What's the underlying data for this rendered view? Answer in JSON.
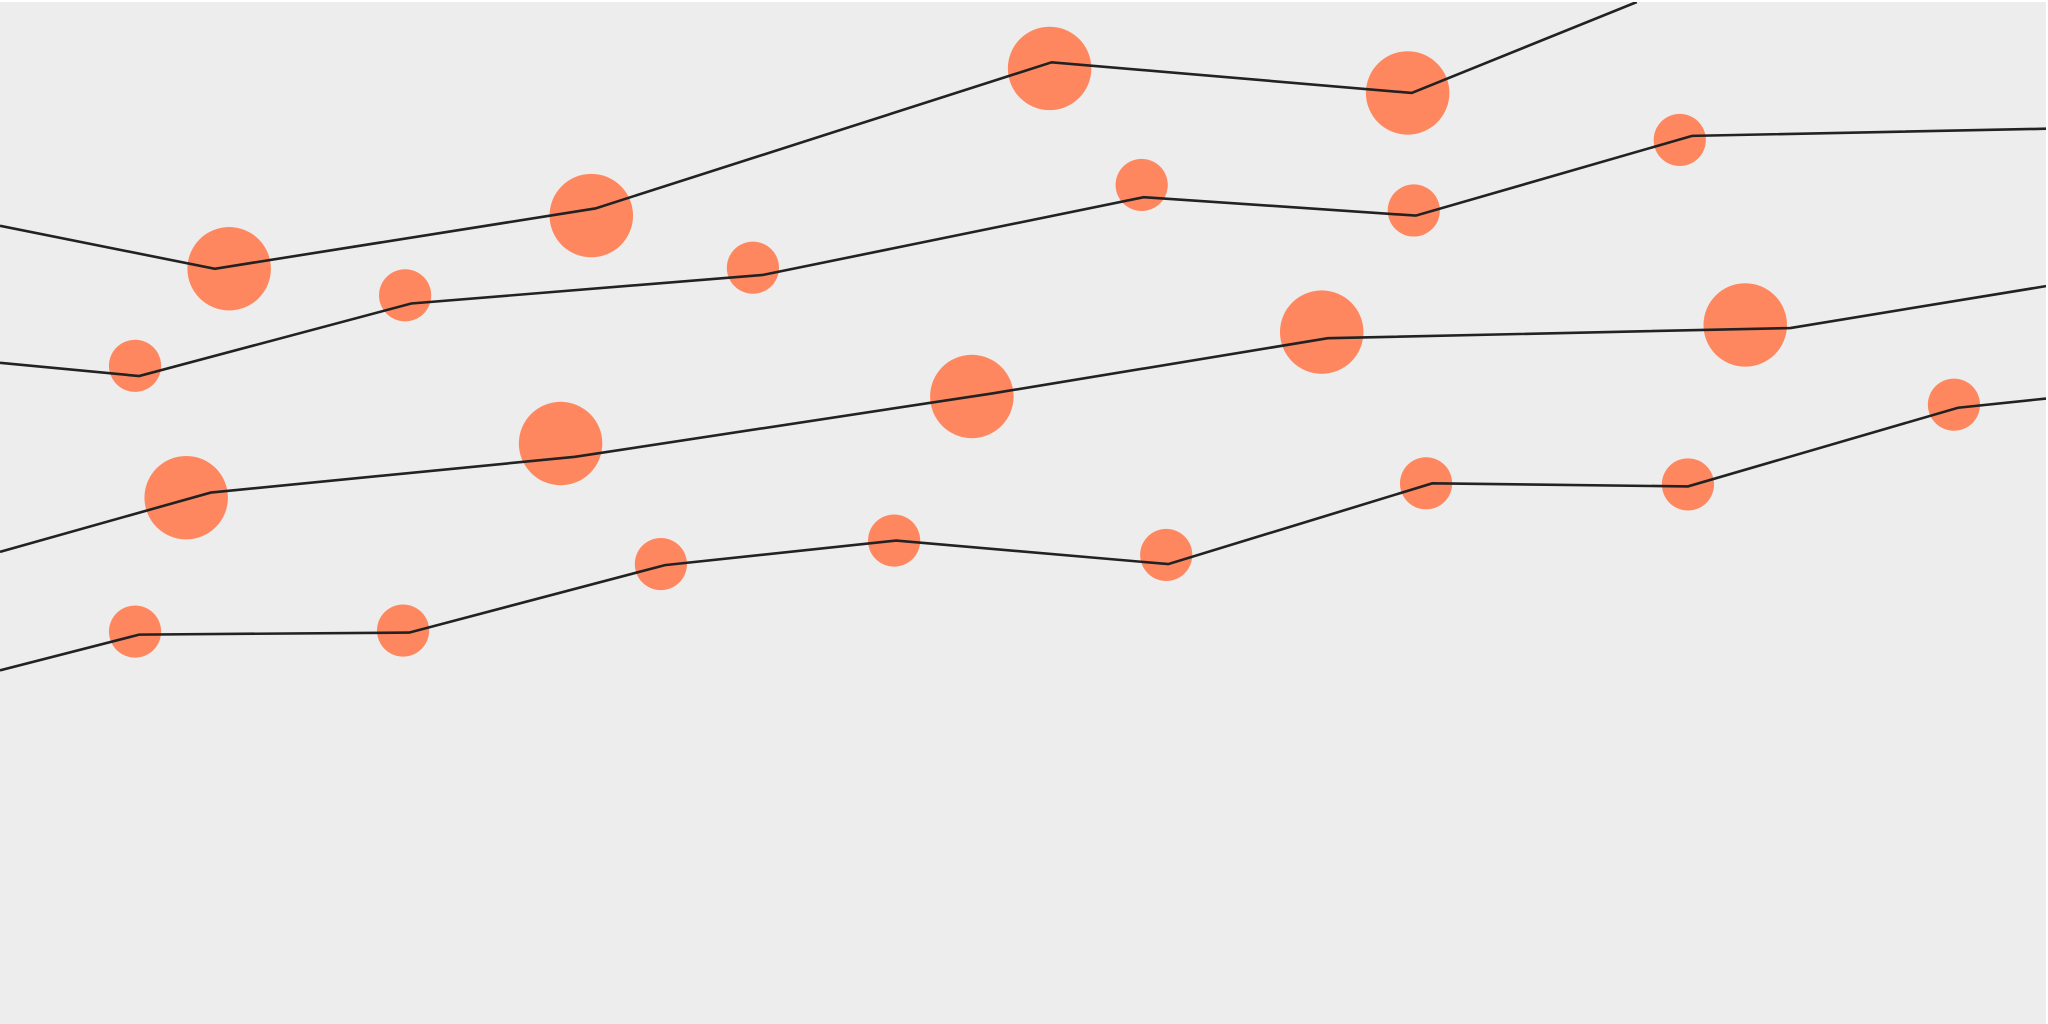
{
  "chart_data": {
    "type": "line",
    "title": "",
    "xlabel": "",
    "ylabel": "",
    "xlim": [
      0,
      100
    ],
    "ylim": [
      0,
      100
    ],
    "grid": false,
    "legend": "none",
    "colors": {
      "background": "#ededed",
      "line": "#222222",
      "marker": "#ff875f"
    },
    "series": [
      {
        "line": [
          [
            0,
            78.1
          ],
          [
            10.5,
            73.9
          ],
          [
            29.1,
            79.8
          ],
          [
            51.4,
            94.1
          ],
          [
            69.0,
            91.1
          ],
          [
            80.0,
            100
          ]
        ],
        "markers": [
          [
            11.2,
            73.9,
            1.6
          ],
          [
            28.9,
            79.1,
            1.6
          ],
          [
            51.3,
            93.5,
            1.6
          ],
          [
            68.8,
            91.1,
            1.6
          ]
        ]
      },
      {
        "line": [
          [
            0,
            64.7
          ],
          [
            6.8,
            63.4
          ],
          [
            20.1,
            70.5
          ],
          [
            37.3,
            73.3
          ],
          [
            55.9,
            80.9
          ],
          [
            69.2,
            79.1
          ],
          [
            82.7,
            86.9
          ],
          [
            100,
            87.6
          ]
        ],
        "markers": [
          [
            6.6,
            64.4,
            1
          ],
          [
            19.8,
            71.3,
            1
          ],
          [
            36.8,
            74.0,
            1
          ],
          [
            55.8,
            82.1,
            1
          ],
          [
            69.1,
            79.6,
            1
          ],
          [
            82.1,
            86.5,
            1
          ]
        ]
      },
      {
        "line": [
          [
            0,
            46.2
          ],
          [
            10.3,
            52.0
          ],
          [
            28.1,
            55.5
          ],
          [
            48.5,
            61.7
          ],
          [
            64.9,
            67.1
          ],
          [
            87.5,
            68.1
          ],
          [
            100,
            72.2
          ]
        ],
        "markers": [
          [
            9.1,
            51.5,
            1.6
          ],
          [
            27.4,
            56.8,
            1.6
          ],
          [
            47.5,
            61.4,
            1.6
          ],
          [
            64.6,
            67.7,
            1.6
          ],
          [
            85.3,
            68.4,
            1.6
          ]
        ]
      },
      {
        "line": [
          [
            0,
            34.6
          ],
          [
            6.8,
            38.1
          ],
          [
            20.0,
            38.3
          ],
          [
            32.5,
            44.9
          ],
          [
            43.8,
            47.3
          ],
          [
            57.1,
            45.0
          ],
          [
            70.0,
            52.9
          ],
          [
            82.5,
            52.6
          ],
          [
            95.7,
            60.3
          ],
          [
            100,
            61.2
          ]
        ],
        "markers": [
          [
            6.6,
            38.4,
            1
          ],
          [
            19.7,
            38.5,
            1
          ],
          [
            32.3,
            45.0,
            1
          ],
          [
            43.7,
            47.3,
            1
          ],
          [
            57.0,
            45.9,
            1
          ],
          [
            69.7,
            52.9,
            1
          ],
          [
            82.5,
            52.8,
            1
          ],
          [
            95.5,
            60.6,
            1
          ]
        ]
      }
    ]
  }
}
